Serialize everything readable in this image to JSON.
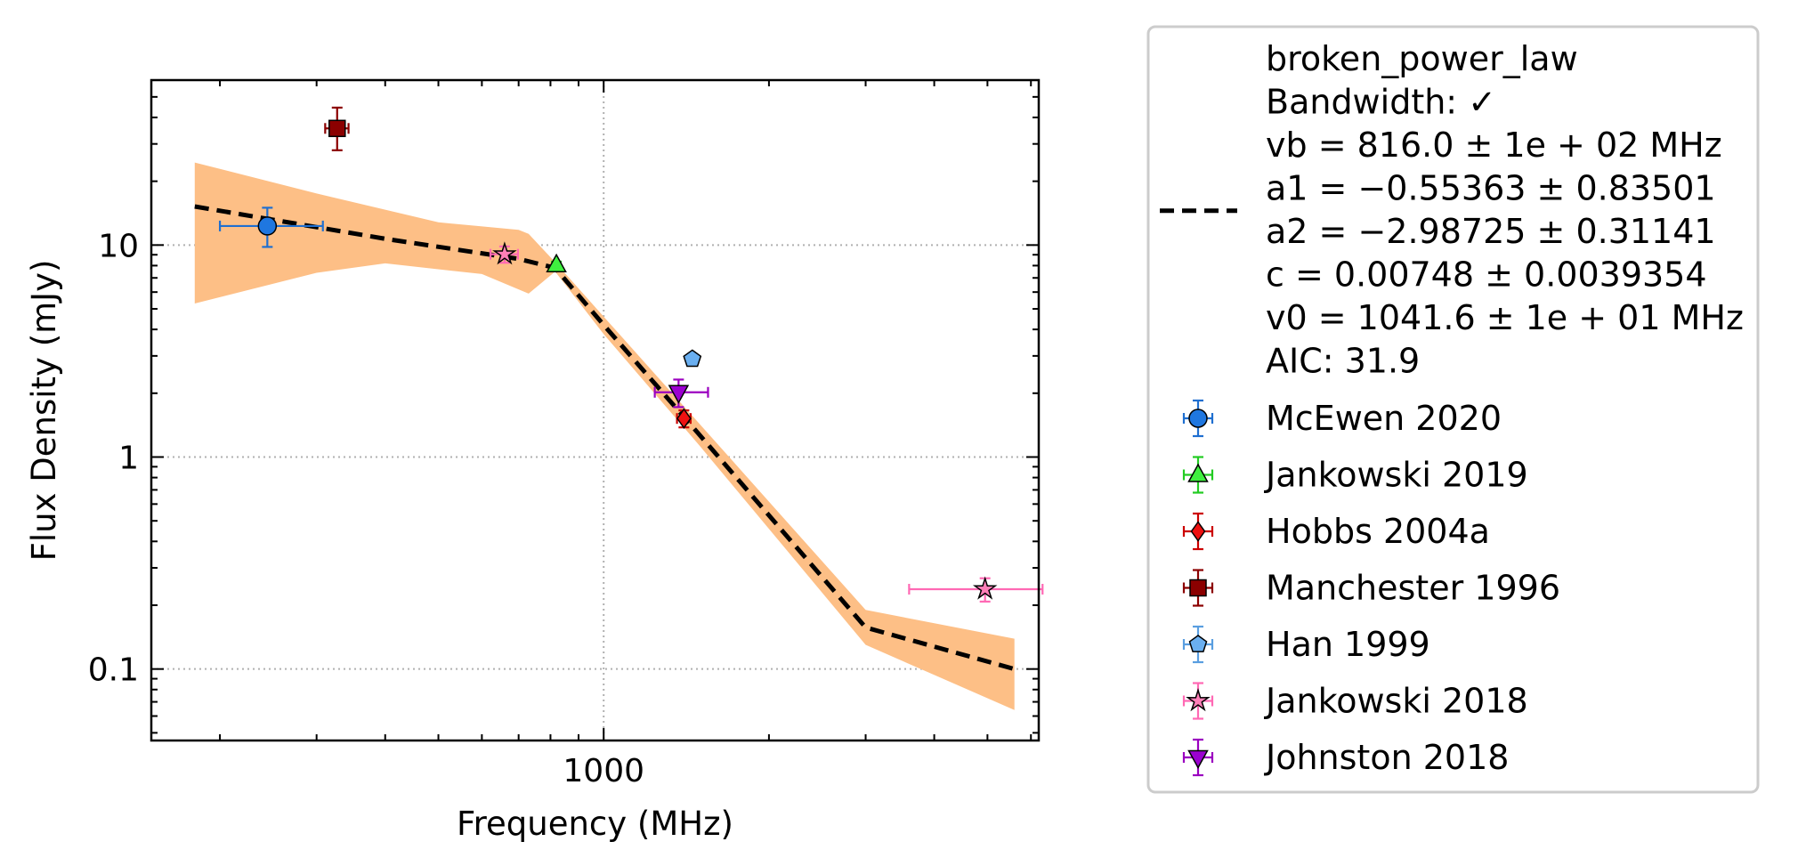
{
  "chart_data": {
    "type": "scatter",
    "xlabel": "Frequency (MHz)",
    "ylabel": "Flux Density (mJy)",
    "xscale": "log",
    "yscale": "log",
    "xlim": [
      150,
      6200
    ],
    "ylim": [
      0.046,
      60
    ],
    "grid": true,
    "legend_position": "outside-right",
    "x_ticks": [
      {
        "value": 1000,
        "label": "1000"
      }
    ],
    "y_ticks": [
      {
        "value": 0.1,
        "label": "0.1"
      },
      {
        "value": 1,
        "label": "1"
      },
      {
        "value": 10,
        "label": "10"
      }
    ],
    "fit": {
      "label_lines": [
        "broken_power_law",
        "Bandwidth: ✓",
        "vb = 816.0 ± 1e + 02 MHz",
        "a1 = −0.55363 ± 0.83501",
        "a2 = −2.98725 ± 0.31141",
        "c = 0.00748 ± 0.0039354",
        "v0 = 1041.6 ± 1e + 01 MHz",
        "AIC: 31.9"
      ],
      "line_color": "#000000",
      "band_color": "#fdbf86",
      "curve": [
        [
          180,
          15.2
        ],
        [
          400,
          10.7
        ],
        [
          700,
          8.6
        ],
        [
          816,
          7.8
        ],
        [
          1000,
          4.2
        ],
        [
          1500,
          1.26
        ],
        [
          3000,
          0.157
        ],
        [
          5600,
          0.1
        ]
      ],
      "band_upper": [
        [
          180,
          24.5
        ],
        [
          300,
          17.5
        ],
        [
          500,
          12.8
        ],
        [
          700,
          11.8
        ],
        [
          730,
          11.3
        ],
        [
          816,
          8.3
        ],
        [
          1000,
          4.6
        ],
        [
          1500,
          1.42
        ],
        [
          3000,
          0.19
        ],
        [
          5600,
          0.139
        ]
      ],
      "band_lower": [
        [
          5600,
          0.064
        ],
        [
          3000,
          0.13
        ],
        [
          1500,
          1.12
        ],
        [
          1000,
          3.8
        ],
        [
          816,
          7.5
        ],
        [
          730,
          5.9
        ],
        [
          600,
          7.3
        ],
        [
          400,
          8.2
        ],
        [
          300,
          7.4
        ],
        [
          180,
          5.3
        ]
      ]
    },
    "series": [
      {
        "name": "McEwen 2020",
        "marker": "circle",
        "color": "#1f77e0",
        "ecolor": "#1f6fd0",
        "points": [
          {
            "x": 244,
            "y": 12.3,
            "xerr": [
              44,
              64
            ],
            "yerr": [
              2.5,
              2.7
            ]
          }
        ]
      },
      {
        "name": "Jankowski 2019",
        "marker": "triangle-up",
        "color": "#3ff03f",
        "ecolor": "#22cc22",
        "points": [
          {
            "x": 820,
            "y": 8.05,
            "xerr": [
              0,
              0
            ],
            "yerr": [
              0.3,
              0.3
            ]
          }
        ]
      },
      {
        "name": "Hobbs 2004a",
        "marker": "diamond",
        "color": "#ee1111",
        "ecolor": "#cc0000",
        "points": [
          {
            "x": 1400,
            "y": 1.52,
            "xerr": [
              40,
              40
            ],
            "yerr": [
              0.14,
              0.14
            ]
          }
        ]
      },
      {
        "name": "Manchester 1996",
        "marker": "square",
        "color": "#8b0000",
        "ecolor": "#8b0000",
        "points": [
          {
            "x": 327,
            "y": 35.5,
            "xerr": [
              16,
              16
            ],
            "yerr": [
              7.5,
              9
            ]
          }
        ]
      },
      {
        "name": "Han 1999",
        "marker": "pentagon",
        "color": "#6aaff0",
        "ecolor": "#5a9ee0",
        "points": [
          {
            "x": 1450,
            "y": 2.9,
            "xerr": [
              0,
              0
            ],
            "yerr": [
              0.12,
              0.12
            ]
          }
        ]
      },
      {
        "name": "Jankowski 2018",
        "marker": "star",
        "color": "#ff7fb8",
        "ecolor": "#ff69b4",
        "points": [
          {
            "x": 660,
            "y": 9.05,
            "xerr": [
              38,
              38
            ],
            "yerr": [
              0.8,
              0.8
            ]
          },
          {
            "x": 4950,
            "y": 0.238,
            "xerr": [
              1350,
              1350
            ],
            "yerr": [
              0.03,
              0.03
            ]
          }
        ]
      },
      {
        "name": "Johnston 2018",
        "marker": "triangle-down",
        "color": "#9b00d0",
        "ecolor": "#9b00c0",
        "points": [
          {
            "x": 1369,
            "y": 2.02,
            "xerr": [
              130,
              180
            ],
            "yerr": [
              0.3,
              0.3
            ]
          }
        ]
      }
    ]
  }
}
